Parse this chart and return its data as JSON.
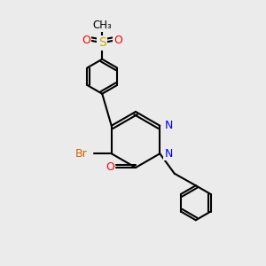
{
  "bg_color": "#ebebeb",
  "bond_color": "#000000",
  "bond_width": 1.5,
  "atom_colors": {
    "N": "#0000ff",
    "O": "#ff0000",
    "S": "#ccaa00",
    "Br": "#cc6600",
    "C": "#000000"
  },
  "font_size": 9,
  "figsize": [
    3.0,
    3.0
  ],
  "dpi": 100
}
